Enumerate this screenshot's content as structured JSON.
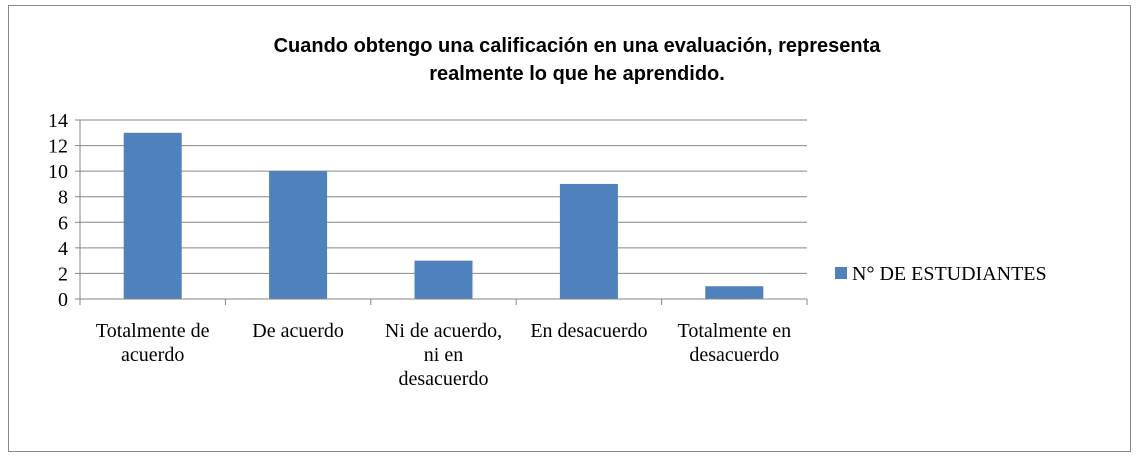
{
  "chart_data": {
    "type": "bar",
    "title": [
      "Cuando obtengo una calificación en una evaluación, representa",
      "realmente lo que he aprendido."
    ],
    "categories": [
      "Totalmente de acuerdo",
      "De acuerdo",
      "Ni de acuerdo, ni en desacuerdo",
      "En desacuerdo",
      "Totalmente en desacuerdo"
    ],
    "series": [
      {
        "name": "N° DE ESTUDIANTES",
        "color": "#4f81bd",
        "values": [
          13,
          10,
          3,
          9,
          1
        ]
      }
    ],
    "ylim": [
      0,
      14
    ],
    "yticks": [
      0,
      2,
      4,
      6,
      8,
      10,
      12,
      14
    ],
    "grid": true,
    "legend": "right"
  }
}
